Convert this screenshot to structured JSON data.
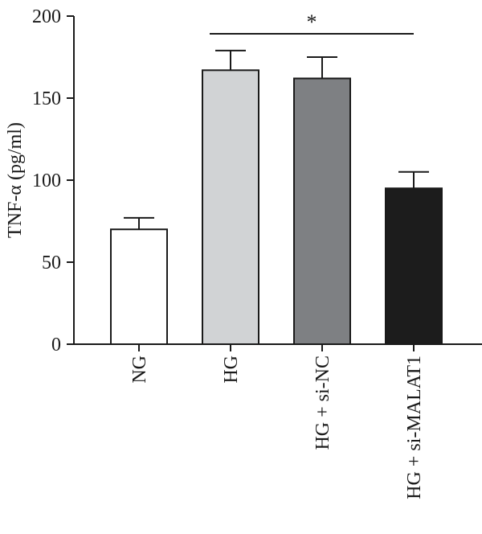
{
  "chart_data": {
    "type": "bar",
    "title": "",
    "xlabel": "",
    "ylabel": "TNF-α (pg/ml)",
    "ylim": [
      0,
      200
    ],
    "yticks": [
      0,
      50,
      100,
      150,
      200
    ],
    "categories": [
      "NG",
      "HG",
      "HG + si-NC",
      "HG + si-MALAT1"
    ],
    "values": [
      70,
      167,
      162,
      95
    ],
    "errors": [
      7,
      12,
      13,
      10
    ],
    "bar_colors": [
      "#ffffff",
      "#d1d3d5",
      "#7e8083",
      "#1c1c1c"
    ],
    "significance": {
      "label": "*",
      "from": "HG",
      "to": "HG + si-MALAT1"
    },
    "grid": false,
    "legend": "none"
  }
}
